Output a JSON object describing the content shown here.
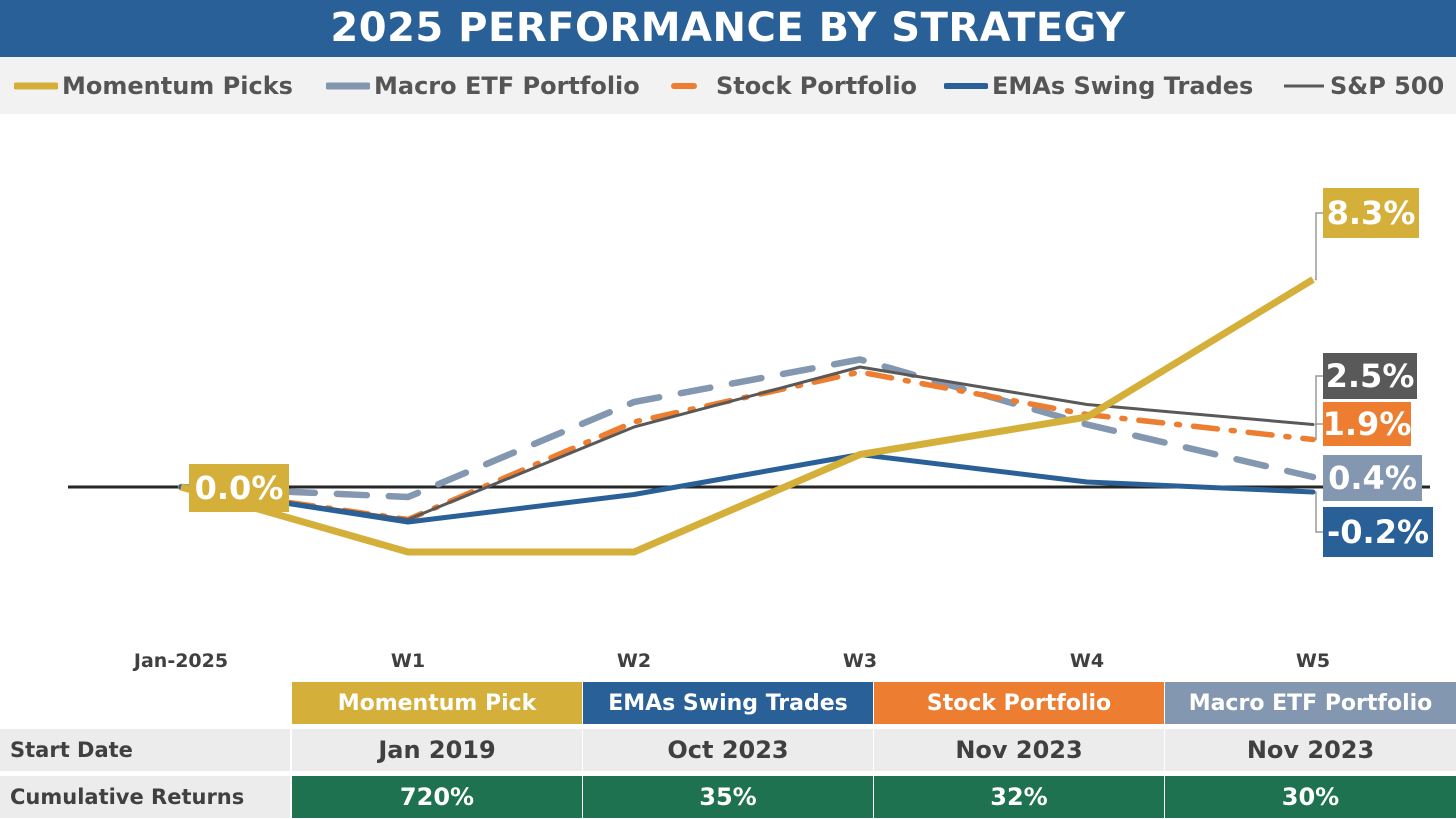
{
  "title": "2025 PERFORMANCE BY STRATEGY",
  "legend": [
    {
      "label": "Momentum Picks",
      "color": "#d4b03a",
      "style": "solid-thick"
    },
    {
      "label": "Macro ETF Portfolio",
      "color": "#8497b0",
      "style": "dashed"
    },
    {
      "label": "Stock Portfolio",
      "color": "#ed7d31",
      "style": "dash-dot"
    },
    {
      "label": "EMAs Swing Trades",
      "color": "#2a6098",
      "style": "solid"
    },
    {
      "label": "S&P 500",
      "color": "#595959",
      "style": "solid-thin"
    }
  ],
  "chart_data": {
    "type": "line",
    "title": "2025 PERFORMANCE BY STRATEGY",
    "xlabel": "",
    "ylabel": "",
    "categories": [
      "Jan-2025",
      "W1",
      "W2",
      "W3",
      "W4",
      "W5"
    ],
    "ylim": [
      -4,
      11
    ],
    "y_axis_labels_shown": false,
    "grid": false,
    "zero_line": true,
    "legend_position": "top",
    "series": [
      {
        "name": "Macro ETF Portfolio",
        "color": "#8497b0",
        "style": "dashed",
        "values": [
          0.0,
          -0.4,
          3.4,
          5.1,
          2.5,
          0.4
        ]
      },
      {
        "name": "Stock Portfolio",
        "color": "#ed7d31",
        "style": "dash-dot",
        "values": [
          0.0,
          -1.3,
          2.6,
          4.6,
          2.9,
          1.9
        ]
      },
      {
        "name": "S&P 500",
        "color": "#595959",
        "style": "solid-thin",
        "values": [
          0.0,
          -1.3,
          2.4,
          4.8,
          3.3,
          2.5
        ]
      },
      {
        "name": "EMAs Swing Trades",
        "color": "#2a6098",
        "style": "solid",
        "values": [
          0.0,
          -1.4,
          -0.3,
          1.3,
          0.2,
          -0.2
        ]
      },
      {
        "name": "Momentum Picks",
        "color": "#d4b03a",
        "style": "solid-thick",
        "values": [
          0.0,
          -2.6,
          -2.6,
          1.3,
          2.8,
          8.3
        ]
      }
    ],
    "start_label": {
      "text": "0.0%",
      "color": "#d4b03a"
    },
    "end_labels": [
      {
        "series": "Momentum Picks",
        "text": "8.3%",
        "color": "#d4b03a"
      },
      {
        "series": "S&P 500",
        "text": "2.5%",
        "color": "#595959"
      },
      {
        "series": "Stock Portfolio",
        "text": "1.9%",
        "color": "#ed7d31"
      },
      {
        "series": "Macro ETF Portfolio",
        "text": "0.4%",
        "color": "#8497b0"
      },
      {
        "series": "EMAs Swing Trades",
        "text": "-0.2%",
        "color": "#2a6098"
      }
    ]
  },
  "table": {
    "headers": [
      {
        "label": "Momentum Pick",
        "color": "#d4b03a"
      },
      {
        "label": "EMAs Swing Trades",
        "color": "#2a6098"
      },
      {
        "label": "Stock Portfolio",
        "color": "#ed7d31"
      },
      {
        "label": "Macro ETF Portfolio",
        "color": "#8497b0"
      }
    ],
    "rows": [
      {
        "label": "Start Date",
        "values": [
          "Jan 2019",
          "Oct 2023",
          "Nov 2023",
          "Nov 2023"
        ]
      },
      {
        "label": "Cumulative Returns",
        "values": [
          "720%",
          "35%",
          "32%",
          "30%"
        ]
      }
    ],
    "returns_color": "#1f7250"
  }
}
